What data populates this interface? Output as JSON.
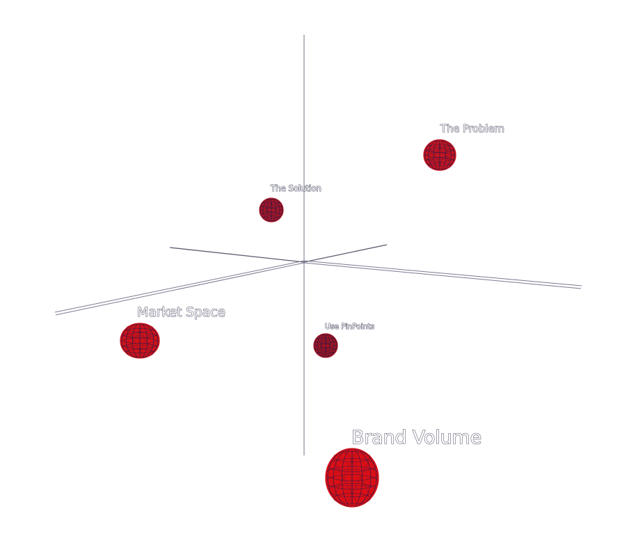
{
  "nodes": [
    {
      "id": "the-problem",
      "label": "The Problem",
      "color": "#c8141e"
    },
    {
      "id": "the-solution",
      "label": "The Solution",
      "color": "#b01622"
    },
    {
      "id": "market-space",
      "label": "Market Space",
      "color": "#d01218"
    },
    {
      "id": "use-pinpoints",
      "label": "Use PinPoints",
      "color": "#a8141e"
    },
    {
      "id": "brand-volume",
      "label": "Brand Volume",
      "color": "#d80f16"
    }
  ],
  "colors": {
    "sphere_wire": "#2a1a4a",
    "axis": "#6a6a80",
    "label_outline": "#2a2a48"
  }
}
